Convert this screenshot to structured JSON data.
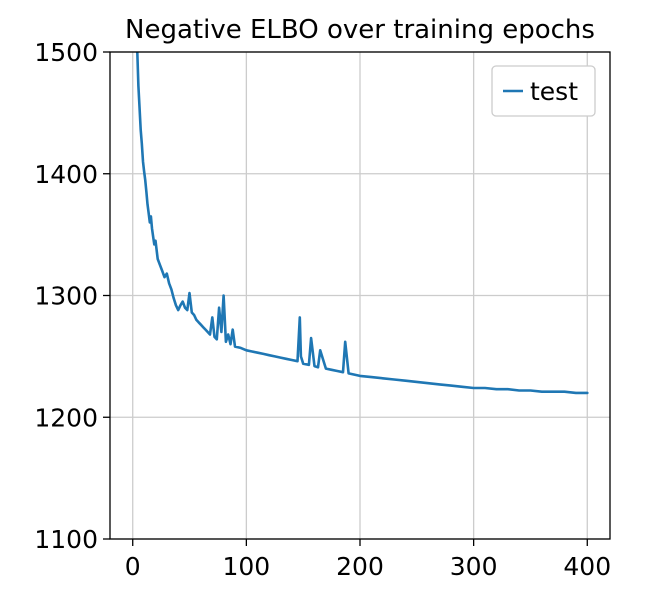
{
  "chart_data": {
    "type": "line",
    "title": "Negative ELBO over training epochs",
    "xlabel": "",
    "ylabel": "",
    "xlim": [
      -20,
      420
    ],
    "ylim": [
      1100,
      1500
    ],
    "xticks": [
      0,
      100,
      200,
      300,
      400
    ],
    "yticks": [
      1100,
      1200,
      1300,
      1400,
      1500
    ],
    "grid": true,
    "legend_position": "top-right",
    "series": [
      {
        "name": "test",
        "color": "#1f77b4",
        "x": [
          0,
          2,
          4,
          5,
          6,
          7,
          8,
          9,
          10,
          11,
          12,
          13,
          14,
          15,
          16,
          17,
          18,
          19,
          20,
          22,
          24,
          26,
          28,
          30,
          32,
          34,
          36,
          38,
          40,
          42,
          44,
          46,
          48,
          50,
          52,
          54,
          56,
          58,
          60,
          62,
          64,
          66,
          68,
          70,
          72,
          74,
          76,
          78,
          80,
          82,
          84,
          86,
          88,
          90,
          95,
          100,
          105,
          110,
          115,
          120,
          125,
          130,
          135,
          140,
          145,
          147,
          148,
          150,
          155,
          157,
          160,
          163,
          165,
          170,
          175,
          180,
          185,
          187,
          190,
          195,
          200,
          210,
          220,
          230,
          240,
          250,
          260,
          270,
          280,
          290,
          300,
          310,
          320,
          330,
          340,
          350,
          360,
          370,
          380,
          390,
          400
        ],
        "values": [
          1560,
          1530,
          1500,
          1472,
          1455,
          1436,
          1425,
          1410,
          1402,
          1395,
          1385,
          1375,
          1368,
          1360,
          1365,
          1355,
          1348,
          1342,
          1345,
          1330,
          1325,
          1320,
          1315,
          1318,
          1310,
          1305,
          1298,
          1292,
          1288,
          1292,
          1295,
          1290,
          1288,
          1302,
          1286,
          1284,
          1280,
          1278,
          1276,
          1274,
          1272,
          1270,
          1268,
          1282,
          1266,
          1264,
          1290,
          1270,
          1300,
          1262,
          1268,
          1260,
          1272,
          1258,
          1257,
          1255,
          1254,
          1253,
          1252,
          1251,
          1250,
          1249,
          1248,
          1247,
          1246,
          1282,
          1250,
          1244,
          1243,
          1265,
          1242,
          1241,
          1255,
          1240,
          1239,
          1238,
          1237,
          1262,
          1236,
          1235,
          1234,
          1233,
          1232,
          1231,
          1230,
          1229,
          1228,
          1227,
          1226,
          1225,
          1224,
          1224,
          1223,
          1223,
          1222,
          1222,
          1221,
          1221,
          1221,
          1220,
          1220
        ]
      }
    ]
  }
}
